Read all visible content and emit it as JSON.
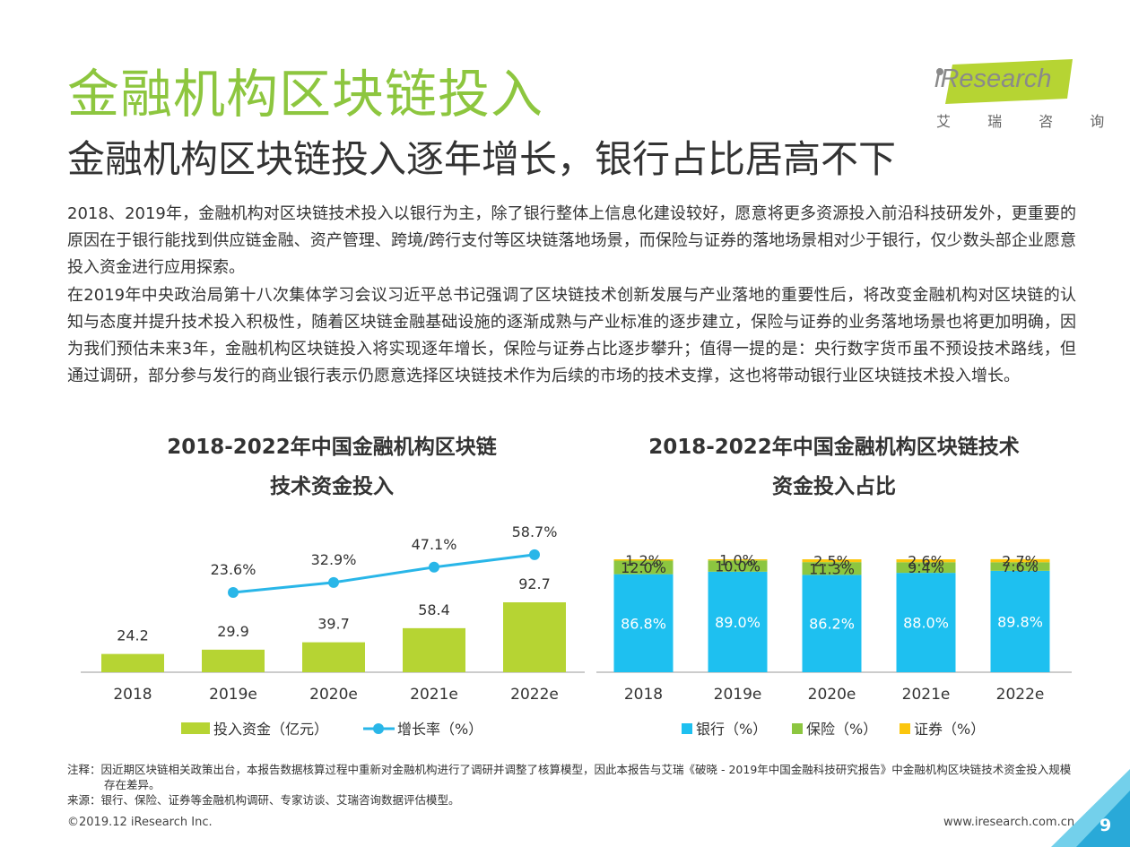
{
  "header": {
    "title": "金融机构区块链投入",
    "subtitle": "金融机构区块链投入逐年增长，银行占比居高不下"
  },
  "logo": {
    "text": "iResearch",
    "sub": "艾 瑞 咨 询",
    "accent_color": "#b6d433"
  },
  "body": {
    "paragraphs": [
      "2018、2019年，金融机构对区块链技术投入以银行为主，除了银行整体上信息化建设较好，愿意将更多资源投入前沿科技研发外，更重要的原因在于银行能找到供应链金融、资产管理、跨境/跨行支付等区块链落地场景，而保险与证券的落地场景相对少于银行，仅少数头部企业愿意投入资金进行应用探索。",
      "在2019年中央政治局第十八次集体学习会议习近平总书记强调了区块链技术创新发展与产业落地的重要性后，将改变金融机构对区块链的认知与态度并提升技术投入积极性，随着区块链金融基础设施的逐渐成熟与产业标准的逐步建立，保险与证券的业务落地场景也将更加明确，因为我们预估未来3年，金融机构区块链投入将实现逐年增长，保险与证券占比逐步攀升；值得一提的是：央行数字货币虽不预设技术路线，但通过调研，部分参与发行的商业银行表示仍愿意选择区块链技术作为后续的市场的技术支撑，这也将带动银行业区块链技术投入增长。"
    ]
  },
  "chart_data": [
    {
      "type": "bar",
      "title_line1": "2018-2022年中国金融机构区块链",
      "title_line2": "技术资金投入",
      "categories": [
        "2018",
        "2019e",
        "2020e",
        "2021e",
        "2022e"
      ],
      "series": [
        {
          "name": "投入资金（亿元）",
          "type": "bar",
          "values": [
            24.2,
            29.9,
            39.7,
            58.4,
            92.7
          ],
          "labels": [
            "24.2",
            "29.9",
            "39.7",
            "58.4",
            "92.7"
          ],
          "color": "#b6d433"
        },
        {
          "name": "增长率（%）",
          "type": "line",
          "values": [
            null,
            23.6,
            32.9,
            47.1,
            58.7
          ],
          "labels": [
            "",
            "23.6%",
            "32.9%",
            "47.1%",
            "58.7%"
          ],
          "color": "#29b6e8"
        }
      ],
      "legend_position": "bottom",
      "grid": false
    },
    {
      "type": "bar",
      "stacked": true,
      "title_line1": "2018-2022年中国金融机构区块链技术",
      "title_line2": "资金投入占比",
      "categories": [
        "2018",
        "2019e",
        "2020e",
        "2021e",
        "2022e"
      ],
      "series": [
        {
          "name": "银行（%）",
          "values": [
            86.8,
            89.0,
            86.2,
            88.0,
            89.8
          ],
          "labels": [
            "86.8%",
            "89.0%",
            "86.2%",
            "88.0%",
            "89.8%"
          ],
          "color": "#1ec0f0"
        },
        {
          "name": "保险（%）",
          "values": [
            12.0,
            10.0,
            11.3,
            9.4,
            7.6
          ],
          "labels": [
            "12.0%",
            "10.0%",
            "11.3%",
            "9.4%",
            "7.6%"
          ],
          "color": "#8cc640"
        },
        {
          "name": "证券（%）",
          "values": [
            1.2,
            1.0,
            2.5,
            2.6,
            2.7
          ],
          "labels": [
            "1.2%",
            "1.0%",
            "2.5%",
            "2.6%",
            "2.7%"
          ],
          "color": "#fbc60e"
        }
      ],
      "ylim": [
        0,
        100
      ],
      "legend_position": "bottom",
      "grid": false
    }
  ],
  "footnotes": {
    "note": "注释：因近期区块链相关政策出台，本报告数据核算过程中重新对金融机构进行了调研并调整了核算模型，因此本报告与艾瑞《破晓 - 2019年中国金融科技研究报告》中金融机构区块链技术资金投入规模存在差异。",
    "source": "来源：银行、保险、证券等金融机构调研、专家访谈、艾瑞咨询数据评估模型。"
  },
  "footer": {
    "copyright": "©2019.12 iResearch Inc.",
    "website": "www.iresearch.com.cn",
    "page_number": "9"
  }
}
